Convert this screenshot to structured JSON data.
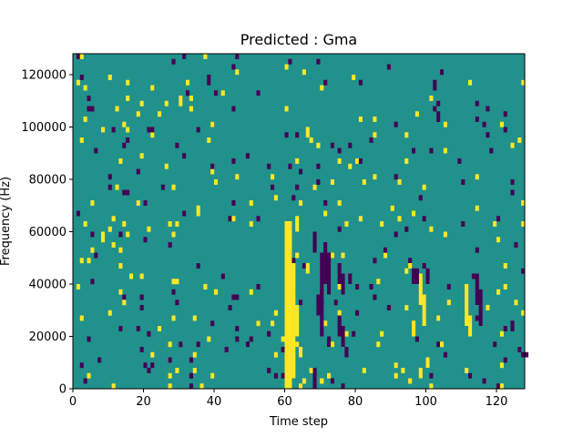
{
  "chart_data": {
    "type": "heatmap",
    "title": "Predicted : Gma",
    "xlabel": "Time step",
    "ylabel": "Frequency (Hz)",
    "xlim": [
      0,
      128
    ],
    "ylim": [
      0,
      128000
    ],
    "xticks": [
      "0",
      "20",
      "40",
      "60",
      "80",
      "100",
      "120"
    ],
    "yticks": [
      "0",
      "20000",
      "40000",
      "60000",
      "80000",
      "100000",
      "120000"
    ],
    "grid": false,
    "colormap": "viridis",
    "colors": {
      "background": "#21918c",
      "high": "#fde725",
      "low": "#440154"
    },
    "n_freq_bins": 64,
    "cells": [
      {
        "t": 60,
        "f": [
          0,
          32
        ],
        "v": 1
      },
      {
        "t": 61,
        "f": [
          0,
          32
        ],
        "v": 1
      },
      {
        "t": 62,
        "f": [
          2,
          24
        ],
        "v": 1
      },
      {
        "t": 63,
        "f": [
          10,
          16
        ],
        "v": 1
      },
      {
        "t": 63,
        "f": [
          30,
          33
        ],
        "v": 1
      },
      {
        "t": 64,
        "f": [
          6,
          8
        ],
        "v": 1
      },
      {
        "t": 66,
        "f": [
          22,
          24
        ],
        "v": 1
      },
      {
        "t": 66,
        "f": [
          48,
          50
        ],
        "v": 1
      },
      {
        "t": 68,
        "f": [
          0,
          4
        ],
        "v": -1
      },
      {
        "t": 68,
        "f": [
          26,
          30
        ],
        "v": -1
      },
      {
        "t": 70,
        "f": [
          10,
          26
        ],
        "v": -1
      },
      {
        "t": 69,
        "f": [
          14,
          18
        ],
        "v": -1
      },
      {
        "t": 71,
        "f": [
          20,
          28
        ],
        "v": -1
      },
      {
        "t": 72,
        "f": [
          8,
          10
        ],
        "v": -1
      },
      {
        "t": 72,
        "f": [
          18,
          26
        ],
        "v": -1
      },
      {
        "t": 75,
        "f": [
          10,
          14
        ],
        "v": -1
      },
      {
        "t": 75,
        "f": [
          20,
          24
        ],
        "v": -1
      },
      {
        "t": 76,
        "f": [
          8,
          12
        ],
        "v": -1
      },
      {
        "t": 76,
        "f": [
          18,
          22
        ],
        "v": -1
      },
      {
        "t": 77,
        "f": [
          6,
          8
        ],
        "v": -1
      },
      {
        "t": 78,
        "f": [
          20,
          22
        ],
        "v": -1
      },
      {
        "t": 98,
        "f": [
          16,
          22
        ],
        "v": 1
      },
      {
        "t": 99,
        "f": [
          12,
          18
        ],
        "v": 1
      },
      {
        "t": 100,
        "f": [
          4,
          6
        ],
        "v": 1
      },
      {
        "t": 96,
        "f": [
          10,
          12
        ],
        "v": 1
      },
      {
        "t": 98,
        "f": [
          2,
          4
        ],
        "v": 1
      },
      {
        "t": 111,
        "f": [
          12,
          20
        ],
        "v": 1
      },
      {
        "t": 112,
        "f": [
          10,
          14
        ],
        "v": 1
      },
      {
        "t": 114,
        "f": [
          16,
          22
        ],
        "v": -1
      },
      {
        "t": 115,
        "f": [
          12,
          18
        ],
        "v": -1
      },
      {
        "t": 127,
        "f": [
          6,
          7
        ],
        "v": -1
      },
      {
        "t": 128,
        "f": [
          6,
          7
        ],
        "v": -1
      },
      {
        "t": 96,
        "f": [
          20,
          23
        ],
        "v": -1
      },
      {
        "t": 97,
        "f": [
          20,
          23
        ],
        "v": -1
      },
      {
        "t": 100,
        "f": [
          20,
          23
        ],
        "v": -1
      }
    ],
    "scatter_seed": 7
  }
}
